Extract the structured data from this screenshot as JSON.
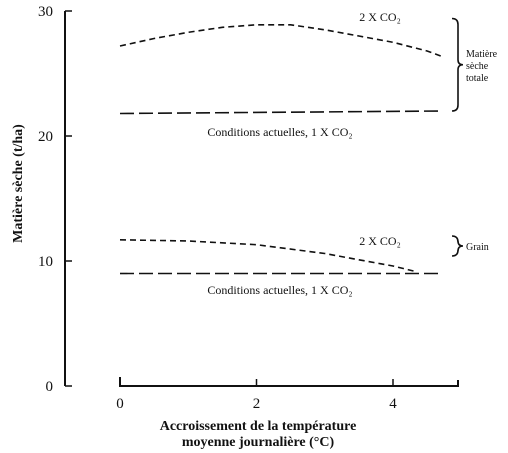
{
  "chart_data": {
    "type": "line",
    "title": "",
    "xlabel_lines": [
      "Accroissement de la température",
      "moyenne journalière (°C)"
    ],
    "ylabel": "Matière sèche (t/ha)",
    "xlim": [
      0,
      4.8
    ],
    "ylim": [
      0,
      30
    ],
    "xticks": [
      0,
      2,
      4
    ],
    "yticks": [
      0,
      10,
      20,
      30
    ],
    "grid": false,
    "series": [
      {
        "name": "2 X CO₂",
        "group": "Matière sèche totale",
        "dash": "short",
        "points": [
          [
            0,
            27.2
          ],
          [
            0.5,
            27.8
          ],
          [
            1.0,
            28.3
          ],
          [
            1.5,
            28.7
          ],
          [
            2.0,
            28.9
          ],
          [
            2.5,
            28.9
          ],
          [
            3.0,
            28.5
          ],
          [
            3.5,
            28.0
          ],
          [
            4.0,
            27.5
          ],
          [
            4.5,
            26.8
          ],
          [
            4.7,
            26.4
          ]
        ]
      },
      {
        "name": "Conditions actuelles, 1 X CO₂",
        "group": "Matière sèche totale",
        "dash": "long",
        "points": [
          [
            0,
            21.8
          ],
          [
            4.7,
            22.0
          ]
        ]
      },
      {
        "name": "2 X CO₂",
        "group": "Grain",
        "dash": "short",
        "points": [
          [
            0,
            11.7
          ],
          [
            1.0,
            11.6
          ],
          [
            2.0,
            11.3
          ],
          [
            3.0,
            10.6
          ],
          [
            3.5,
            10.1
          ],
          [
            4.0,
            9.6
          ],
          [
            4.3,
            9.2
          ]
        ]
      },
      {
        "name": "Conditions actuelles, 1 X CO₂",
        "group": "Grain",
        "dash": "long",
        "points": [
          [
            0,
            9.0
          ],
          [
            4.7,
            9.0
          ]
        ]
      }
    ],
    "braces": [
      {
        "label_lines": [
          "Matière",
          "sèche",
          "totale"
        ],
        "y_range": [
          22,
          29.4
        ]
      },
      {
        "label_lines": [
          "Grain"
        ],
        "y_range": [
          10.4,
          12
        ]
      }
    ]
  }
}
